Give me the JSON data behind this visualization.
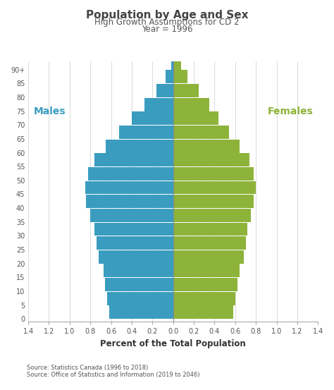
{
  "title": "Population by Age and Sex",
  "subtitle1": "High Growth Assumptions for CD 2",
  "subtitle2": "Year = 1996",
  "xlabel": "Percent of the Total Population",
  "males_label": "Males",
  "females_label": "Females",
  "source1": "Source: Statistics Canada (1996 to 2018)",
  "source2": "Source: Office of Statistics and Information (2019 to 2046)",
  "age_groups": [
    0,
    5,
    10,
    15,
    20,
    25,
    30,
    35,
    40,
    45,
    50,
    55,
    60,
    65,
    70,
    75,
    80,
    85,
    90
  ],
  "age_labels": [
    "0",
    "5",
    "10",
    "15",
    "20",
    "25",
    "30",
    "35",
    "40",
    "45",
    "50",
    "55",
    "60",
    "65",
    "70",
    "75",
    "80",
    "85",
    "90+"
  ],
  "males": [
    0.62,
    0.64,
    0.66,
    0.67,
    0.72,
    0.74,
    0.76,
    0.8,
    0.84,
    0.85,
    0.82,
    0.76,
    0.65,
    0.52,
    0.4,
    0.28,
    0.16,
    0.07,
    0.02
  ],
  "females": [
    0.58,
    0.6,
    0.62,
    0.64,
    0.68,
    0.7,
    0.72,
    0.75,
    0.78,
    0.8,
    0.78,
    0.74,
    0.64,
    0.54,
    0.44,
    0.35,
    0.25,
    0.14,
    0.08
  ],
  "male_color": "#3a9dc0",
  "female_color": "#8db33a",
  "xlim": 1.4,
  "bg_color": "#ffffff",
  "label_color_male": "#3a9dc0",
  "label_color_female": "#8db33a",
  "bar_height": 4.8,
  "xticks": [
    -1.4,
    -1.2,
    -1.0,
    -0.8,
    -0.6,
    -0.4,
    -0.2,
    0.0,
    0.2,
    0.4,
    0.6,
    0.8,
    1.0,
    1.2,
    1.4
  ],
  "xtick_labels": [
    "1.4",
    "1.2",
    "1.0",
    "0.8",
    "0.6",
    "0.4",
    "0.2",
    "0.0",
    "0.2",
    "0.4",
    "0.6",
    "0.8",
    "1.0",
    "1.2",
    "1.4"
  ]
}
